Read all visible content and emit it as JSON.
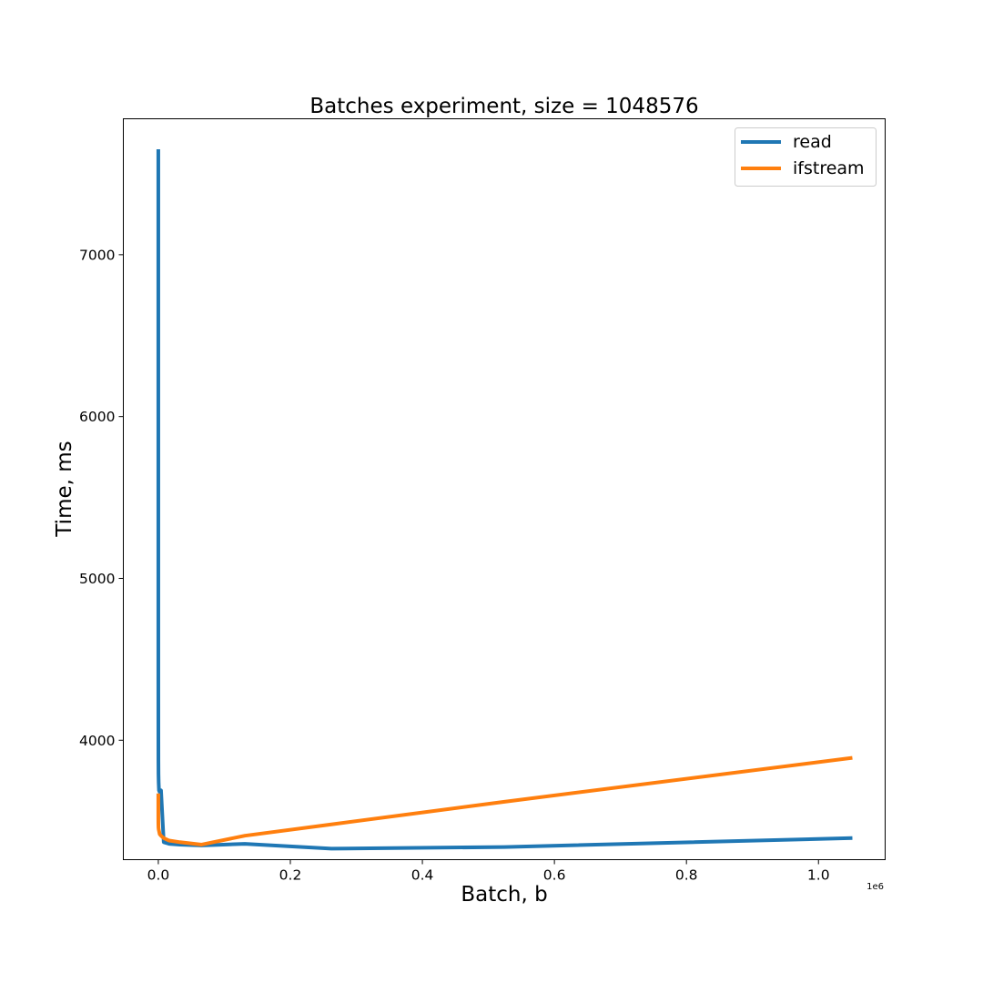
{
  "chart_data": {
    "type": "line",
    "title": "Batches experiment, size = 1048576",
    "xlabel": "Batch, b",
    "ylabel": "Time, ms",
    "x_offset_label": "1e6",
    "xlim": [
      -0.053,
      1.101
    ],
    "ylim": [
      3262,
      7840
    ],
    "xticks": [
      0.0,
      0.2,
      0.4,
      0.6,
      0.8,
      1.0
    ],
    "xtick_labels": [
      "0.0",
      "0.2",
      "0.4",
      "0.6",
      "0.8",
      "1.0"
    ],
    "yticks": [
      4000,
      5000,
      6000,
      7000
    ],
    "ytick_labels": [
      "4000",
      "5000",
      "6000",
      "7000"
    ],
    "grid": false,
    "legend_position": "top-right",
    "series": [
      {
        "name": "read",
        "color": "#1f77b4",
        "x": [
          1e-06,
          2e-06,
          4e-06,
          8e-06,
          1.6e-05,
          3.2e-05,
          6.4e-05,
          0.000128,
          0.000256,
          0.000512,
          0.001024,
          0.002048,
          0.004096,
          0.008192,
          0.016384,
          0.032768,
          0.065536,
          0.131072,
          0.262144,
          0.524288,
          1.048576
        ],
        "y": [
          7640,
          7100,
          6350,
          5550,
          4850,
          4350,
          4050,
          3880,
          3790,
          3740,
          3690,
          3680,
          3690,
          3370,
          3360,
          3355,
          3350,
          3360,
          3330,
          3340,
          3395
        ]
      },
      {
        "name": "ifstream",
        "color": "#ff7f0e",
        "x": [
          1e-06,
          2e-06,
          4e-06,
          8e-06,
          1.6e-05,
          3.2e-05,
          6.4e-05,
          0.000128,
          0.000256,
          0.000512,
          0.001024,
          0.002048,
          0.004096,
          0.008192,
          0.016384,
          0.032768,
          0.065536,
          0.131072,
          0.262144,
          0.524288,
          1.048576
        ],
        "y": [
          3660,
          3620,
          3580,
          3550,
          3530,
          3510,
          3490,
          3475,
          3460,
          3450,
          3440,
          3420,
          3410,
          3395,
          3380,
          3370,
          3355,
          3410,
          3480,
          3620,
          3890
        ]
      }
    ]
  }
}
